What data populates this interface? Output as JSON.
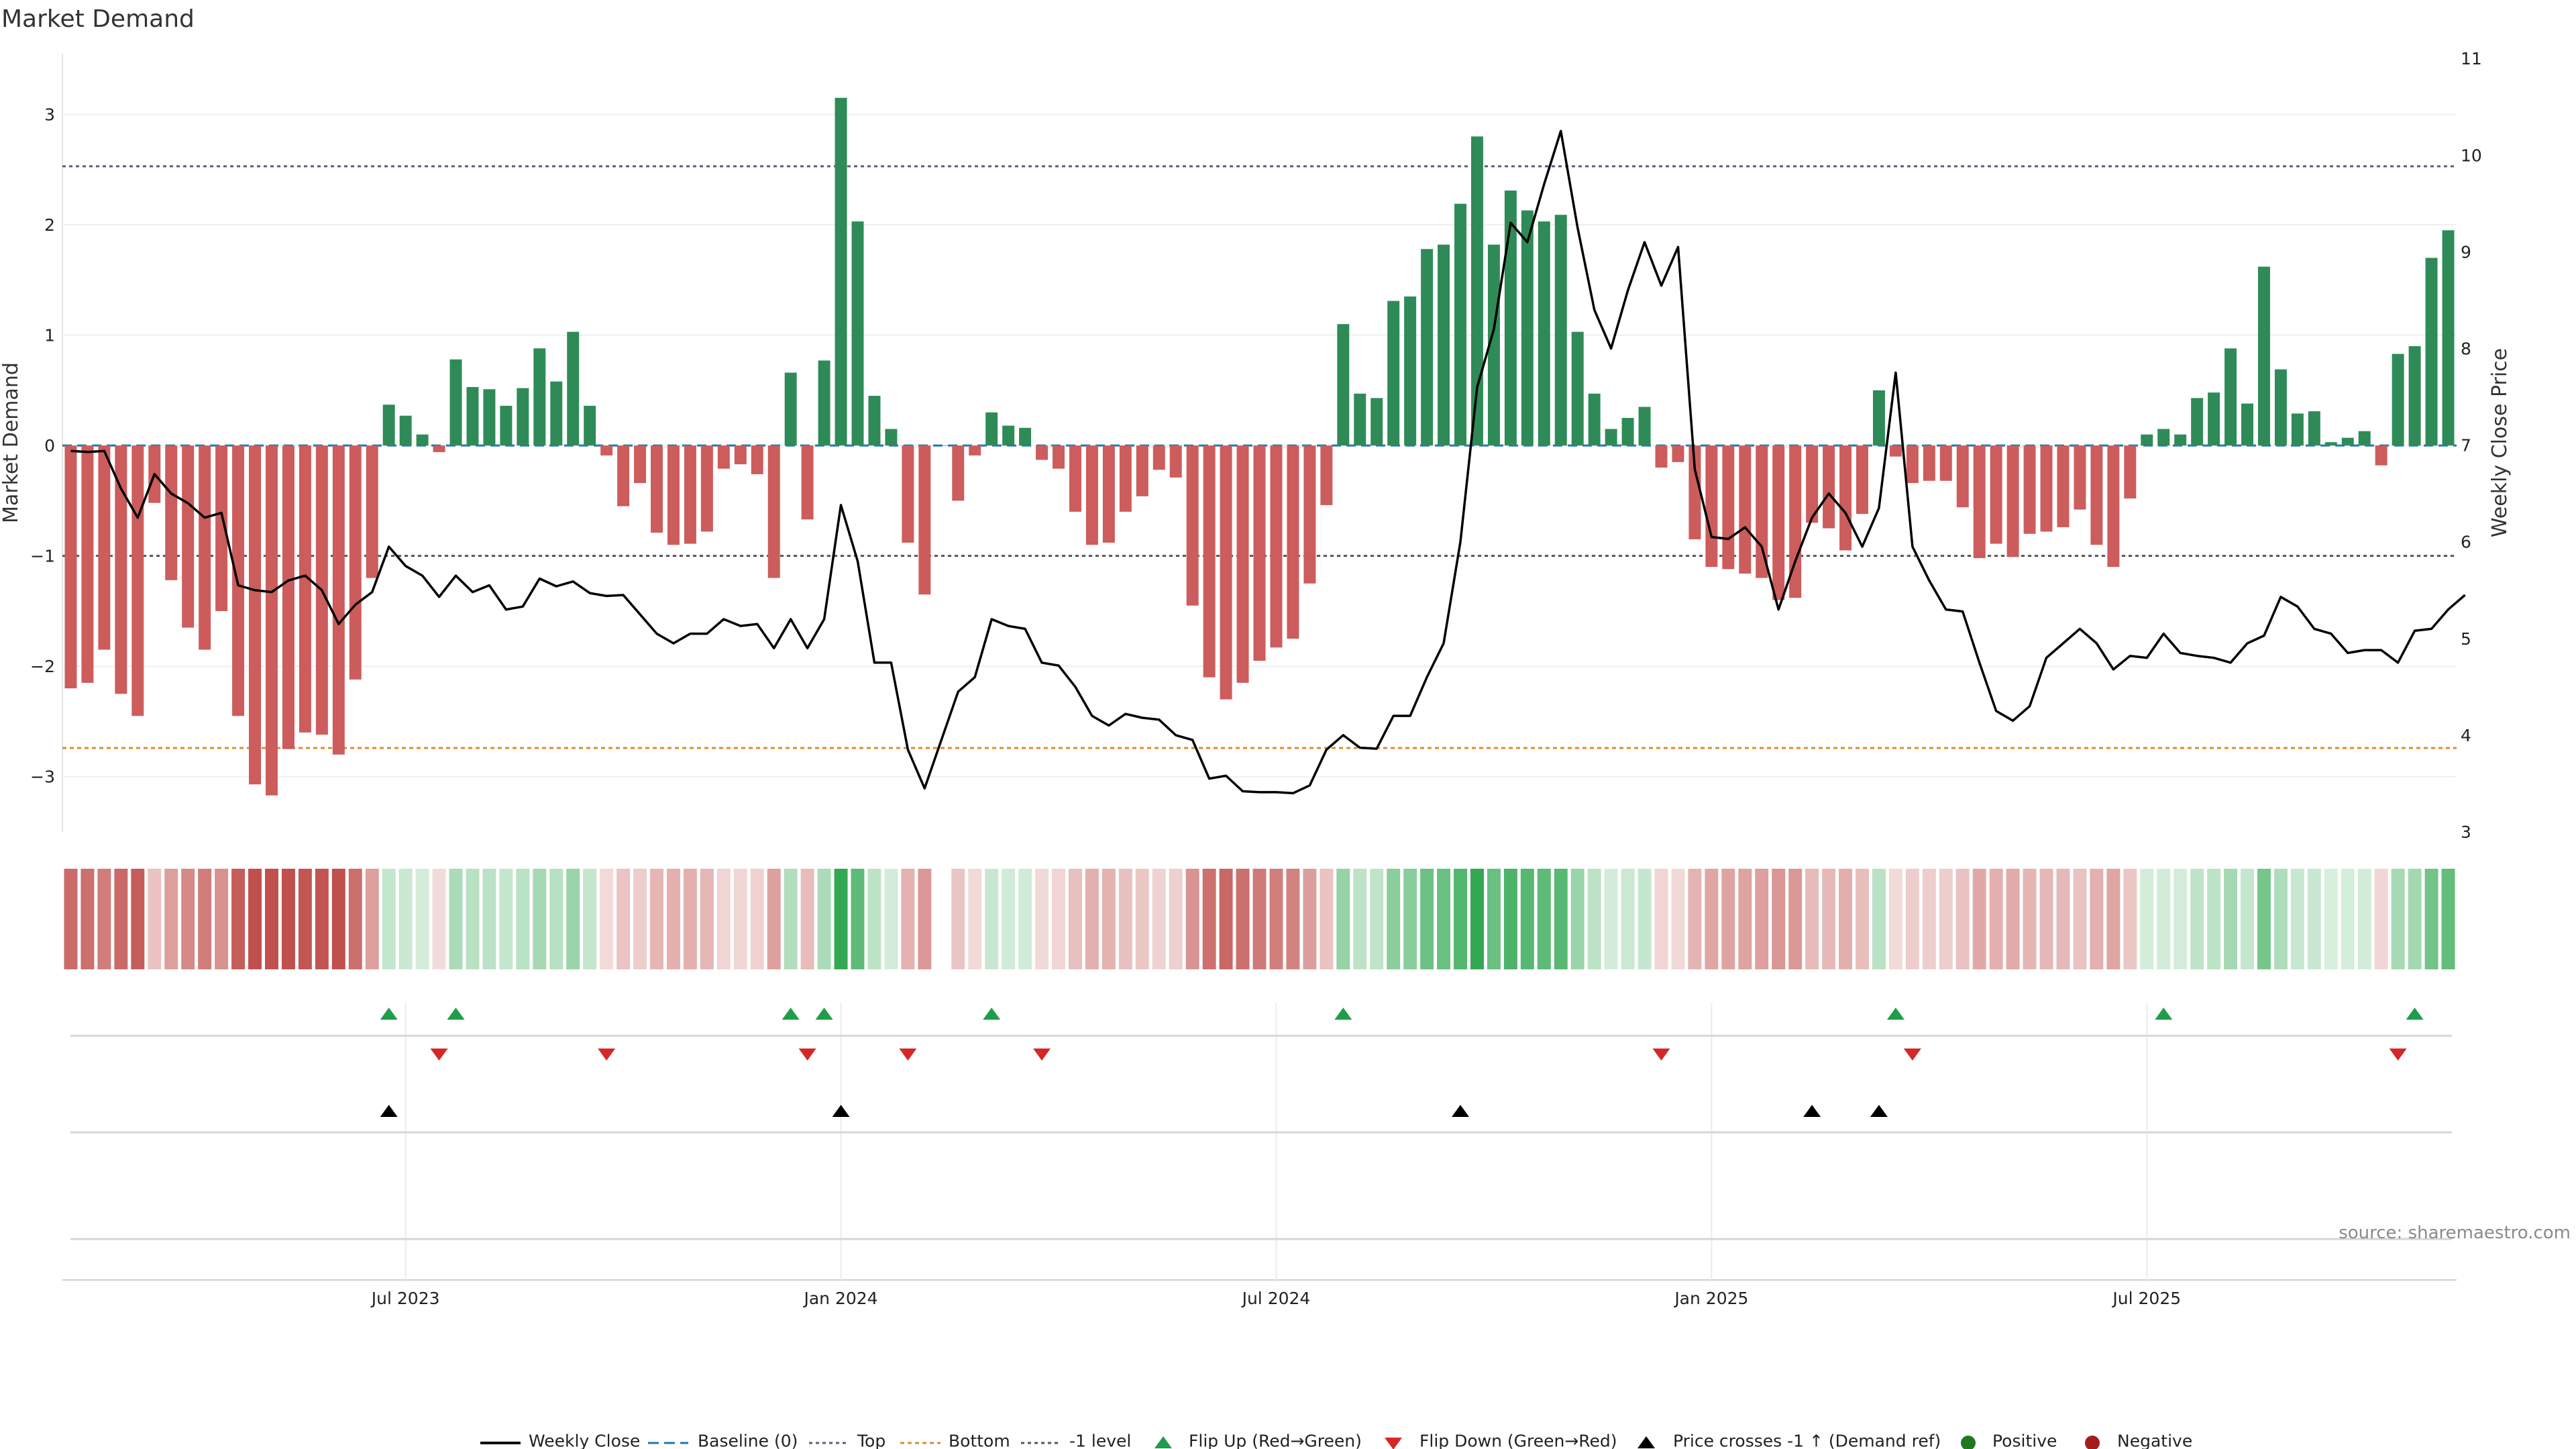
{
  "page": {
    "title": "Market Demand"
  },
  "colors": {
    "positive_bar": "#2e8b57",
    "negative_bar": "#cd5c5c",
    "weekly_close": "#000000",
    "baseline": "#1f77b4",
    "top": "#5a5a8c",
    "bottom": "#e58a2e",
    "minus_one": "#555555",
    "flip_up": "#1e9e4a",
    "flip_down": "#d62728",
    "cross": "#000000",
    "positive_dot": "#1f7a1f",
    "negative_dot": "#a51c1c"
  },
  "chart_data": {
    "type": "bar",
    "title": "Market Demand",
    "ylabel": "Market Demand",
    "y2label": "Weekly Close Price",
    "ylim": [
      -3.5,
      3.55
    ],
    "y2lim": [
      3,
      11.05
    ],
    "yticks": [
      "3",
      "2",
      "1",
      "0",
      "−1",
      "−2",
      "−3"
    ],
    "ytick_values": [
      3,
      2,
      1,
      0,
      -1,
      -2,
      -3
    ],
    "y2ticks": [
      "11",
      "10",
      "9",
      "8",
      "7",
      "6",
      "5",
      "4",
      "3"
    ],
    "y2tick_values": [
      11,
      10,
      9,
      8,
      7,
      6,
      5,
      4,
      3
    ],
    "xticks": [
      "Jul 2023",
      "Jan 2024",
      "Jul 2024",
      "Jan 2025",
      "Jul 2025"
    ],
    "xtick_weeks": [
      20,
      46,
      72,
      98,
      124
    ],
    "reference_lines": {
      "baseline": 0,
      "top": 2.53,
      "bottom": -2.74,
      "minus_one": -1
    },
    "demand": [
      -2.2,
      -2.15,
      -1.85,
      -2.25,
      -2.45,
      -0.52,
      -1.22,
      -1.65,
      -1.85,
      -1.5,
      -2.45,
      -3.07,
      -3.17,
      -2.75,
      -2.6,
      -2.62,
      -2.8,
      -2.12,
      -1.2,
      0.37,
      0.27,
      0.1,
      -0.06,
      0.78,
      0.53,
      0.51,
      0.36,
      0.52,
      0.88,
      0.58,
      1.03,
      0.36,
      -0.09,
      -0.55,
      -0.34,
      -0.79,
      -0.9,
      -0.89,
      -0.78,
      -0.21,
      -0.17,
      -0.26,
      -1.2,
      0.66,
      -0.67,
      0.77,
      3.15,
      2.03,
      0.45,
      0.15,
      -0.88,
      -1.35,
      0.0,
      -0.5,
      -0.09,
      0.3,
      0.18,
      0.16,
      -0.13,
      -0.21,
      -0.6,
      -0.9,
      -0.88,
      -0.6,
      -0.46,
      -0.22,
      -0.29,
      -1.45,
      -2.1,
      -2.3,
      -2.15,
      -1.95,
      -1.83,
      -1.75,
      -1.25,
      -0.54,
      1.1,
      0.47,
      0.43,
      1.31,
      1.35,
      1.78,
      1.82,
      2.19,
      2.8,
      1.82,
      2.31,
      2.13,
      2.03,
      2.09,
      1.03,
      0.47,
      0.15,
      0.25,
      0.35,
      -0.2,
      -0.15,
      -0.85,
      -1.1,
      -1.12,
      -1.16,
      -1.2,
      -1.4,
      -1.38,
      -0.7,
      -0.75,
      -0.95,
      -0.62,
      0.5,
      -0.1,
      -0.34,
      -0.32,
      -0.32,
      -0.56,
      -1.02,
      -0.89,
      -1.01,
      -0.8,
      -0.78,
      -0.74,
      -0.58,
      -0.9,
      -1.1,
      -0.48,
      0.1,
      0.15,
      0.1,
      0.43,
      0.48,
      0.88,
      0.38,
      1.62,
      0.69,
      0.29,
      0.31,
      0.03,
      0.07,
      0.13,
      -0.18,
      0.83,
      0.9,
      1.7,
      1.95
    ],
    "close_x": [
      0,
      1,
      2,
      3,
      4,
      5,
      6,
      7,
      8,
      9,
      10,
      11,
      12,
      13,
      14,
      15,
      16,
      17,
      18,
      19,
      20,
      21,
      22,
      23,
      24,
      25,
      26,
      27,
      28,
      29,
      30,
      31,
      32,
      33,
      34,
      35,
      36,
      37,
      38,
      39,
      40,
      41,
      42,
      43,
      44,
      45,
      46,
      47,
      48,
      49,
      50,
      51,
      52,
      53,
      54,
      55,
      56,
      57,
      58,
      59,
      60,
      61,
      62,
      63,
      64,
      65,
      66,
      67,
      68,
      69,
      70,
      71,
      72,
      73,
      74,
      75,
      76,
      77,
      78,
      79,
      80,
      81,
      82,
      83,
      84,
      85,
      86,
      87,
      88,
      89,
      90,
      91,
      92,
      93,
      94,
      95,
      96,
      97,
      98,
      99,
      100,
      101,
      102,
      103,
      104,
      105,
      106,
      107,
      108,
      109,
      110,
      111,
      112,
      113,
      114,
      115,
      116,
      117,
      118,
      119,
      120,
      121,
      122,
      123,
      124,
      125,
      126,
      127,
      128,
      129,
      130,
      131,
      132,
      133,
      134,
      135,
      136,
      137,
      138,
      139,
      140,
      141,
      142,
      143
    ],
    "weekly_close": [
      6.94,
      6.93,
      6.94,
      6.55,
      6.25,
      6.7,
      6.5,
      6.4,
      6.25,
      6.3,
      5.55,
      5.5,
      5.48,
      5.6,
      5.65,
      5.5,
      5.15,
      5.35,
      5.48,
      5.95,
      5.75,
      5.65,
      5.43,
      5.65,
      5.48,
      5.55,
      5.3,
      5.33,
      5.62,
      5.54,
      5.59,
      5.47,
      5.44,
      5.45,
      5.25,
      5.05,
      4.95,
      5.05,
      5.05,
      5.2,
      5.13,
      5.15,
      4.9,
      5.2,
      4.9,
      5.2,
      6.38,
      5.8,
      4.75,
      4.75,
      3.85,
      3.45,
      3.95,
      4.45,
      4.6,
      5.2,
      5.13,
      5.1,
      4.75,
      4.72,
      4.5,
      4.2,
      4.1,
      4.22,
      4.18,
      4.16,
      4.0,
      3.95,
      3.55,
      3.58,
      3.42,
      3.41,
      3.41,
      3.4,
      3.48,
      3.85,
      4.0,
      3.87,
      3.86,
      4.2,
      4.2,
      4.6,
      4.95,
      6.0,
      7.6,
      8.2,
      9.3,
      9.1,
      9.7,
      10.25,
      9.25,
      8.4,
      8.0,
      8.6,
      9.1,
      8.65,
      9.05,
      6.75,
      6.05,
      6.03,
      6.15,
      5.95,
      5.3,
      5.8,
      6.25,
      6.5,
      6.3,
      5.95,
      6.35,
      7.75,
      5.95,
      5.6,
      5.3,
      5.28,
      4.75,
      4.25,
      4.15,
      4.3,
      4.8,
      4.95,
      5.1,
      4.95,
      4.68,
      4.82,
      4.8,
      5.05,
      4.85,
      4.82,
      4.8,
      4.75,
      4.95,
      5.03,
      5.43,
      5.33,
      5.1,
      5.05,
      4.85,
      4.88,
      4.88,
      4.75,
      5.08,
      5.1,
      5.3,
      5.45
    ],
    "flip_up_weeks": [
      19,
      23,
      43,
      45,
      55,
      76,
      109,
      125,
      140
    ],
    "flip_down_weeks": [
      22,
      32,
      44,
      50,
      58,
      95,
      110,
      139
    ],
    "cross_weeks": [
      19,
      46,
      83,
      104,
      108
    ],
    "legend": [
      "Weekly Close",
      "Baseline (0)",
      "Top",
      "Bottom",
      "-1 level",
      "Flip Up (Red→Green)",
      "Flip Down (Green→Red)",
      "Price crosses -1 ↑ (Demand ref)",
      "Positive",
      "Negative"
    ],
    "legend_position": "bottom-center",
    "source": "source: sharemaestro.com"
  }
}
